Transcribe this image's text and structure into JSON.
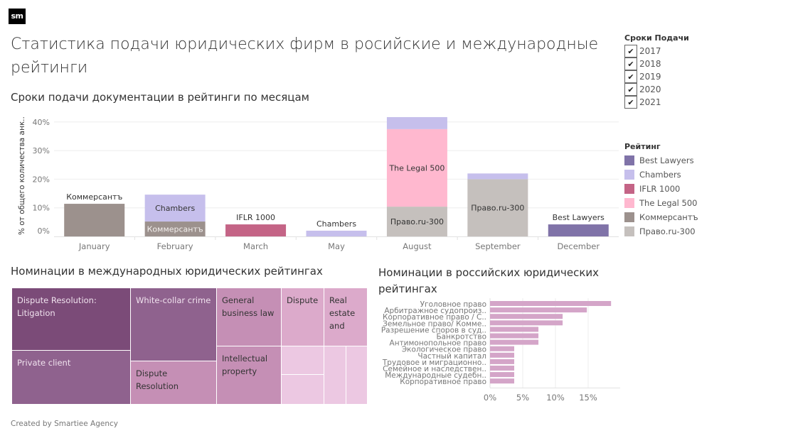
{
  "logo": "sm",
  "title": "Статистика подачи юридических фирм в росийские и международные рейтинги",
  "footer": "Created by Smartiee Agency",
  "filter": {
    "title": "Сроки Подачи",
    "items": [
      {
        "label": "2017",
        "checked": true
      },
      {
        "label": "2018",
        "checked": true
      },
      {
        "label": "2019",
        "checked": true
      },
      {
        "label": "2020",
        "checked": true
      },
      {
        "label": "2021",
        "checked": true
      }
    ],
    "check_glyph": "✔"
  },
  "legend": {
    "title": "Рейтинг",
    "items": [
      {
        "label": "Best Lawyers",
        "color": "#8073a8"
      },
      {
        "label": "Chambers",
        "color": "#c6bfec"
      },
      {
        "label": "IFLR 1000",
        "color": "#c46486"
      },
      {
        "label": "The Legal 500",
        "color": "#ffb8cf"
      },
      {
        "label": "Коммерсантъ",
        "color": "#9c918d"
      },
      {
        "label": "Право.ru-300",
        "color": "#c5c0bd"
      }
    ]
  },
  "chart_data": [
    {
      "type": "bar",
      "stacked": true,
      "title": "Сроки подачи документации в рейтинги по месяцам",
      "xlabel": "",
      "ylabel": "% от общего количества анк..",
      "ylim": [
        0,
        42
      ],
      "yticks": [
        0,
        10,
        20,
        30,
        40
      ],
      "ytick_labels": [
        "0%",
        "10%",
        "20%",
        "30%",
        "40%"
      ],
      "grid": true,
      "categories": [
        "January",
        "February",
        "March",
        "May",
        "August",
        "September",
        "December"
      ],
      "series": [
        {
          "name": "Право.ru-300",
          "color": "#c5c0bd",
          "values": [
            0,
            0,
            0,
            0,
            10.4,
            20.0,
            0
          ]
        },
        {
          "name": "Коммерсантъ",
          "color": "#9c918d",
          "values": [
            11.4,
            5.2,
            0,
            0,
            0,
            0,
            0
          ]
        },
        {
          "name": "IFLR 1000",
          "color": "#c46486",
          "values": [
            0,
            0,
            4.2,
            0,
            0,
            0,
            0
          ]
        },
        {
          "name": "Best Lawyers",
          "color": "#8073a8",
          "values": [
            0,
            0,
            0,
            0,
            0,
            0,
            4.2
          ]
        },
        {
          "name": "The Legal 500",
          "color": "#ffb8cf",
          "values": [
            0,
            0,
            0,
            0,
            27.1,
            0,
            0
          ]
        },
        {
          "name": "Chambers",
          "color": "#c6bfec",
          "values": [
            0,
            9.4,
            0,
            2.0,
            4.2,
            2.0,
            0
          ]
        }
      ],
      "annotations": [
        {
          "category": "January",
          "series": "Коммерсантъ",
          "text": "Коммерсантъ",
          "position": "above"
        },
        {
          "category": "February",
          "series": "Chambers",
          "text": "Chambers",
          "position": "inside"
        },
        {
          "category": "February",
          "series": "Коммерсантъ",
          "text": "Коммерсантъ",
          "position": "inside"
        },
        {
          "category": "March",
          "series": "IFLR 1000",
          "text": "IFLR 1000",
          "position": "above"
        },
        {
          "category": "May",
          "series": "Chambers",
          "text": "Chambers",
          "position": "above"
        },
        {
          "category": "August",
          "series": "The Legal 500",
          "text": "The Legal 500",
          "position": "inside"
        },
        {
          "category": "August",
          "series": "Право.ru-300",
          "text": "Право.ru-300",
          "position": "inside"
        },
        {
          "category": "September",
          "series": "Право.ru-300",
          "text": "Право.ru-300",
          "position": "inside"
        },
        {
          "category": "December",
          "series": "Best Lawyers",
          "text": "Best Lawyers",
          "position": "above"
        }
      ]
    },
    {
      "type": "treemap",
      "title": "Номинации в международных юридических рейтингах",
      "items": [
        {
          "label": "Dispute Resolution: Litigation",
          "value": 14,
          "color": "#7b4b78",
          "text_color": "#f0e2ee"
        },
        {
          "label": "Private client",
          "value": 12,
          "color": "#8f628e",
          "text_color": "#f0e2ee"
        },
        {
          "label": "White-collar crime",
          "value": 10,
          "color": "#8f628e",
          "text_color": "#f0e2ee"
        },
        {
          "label": "Dispute Resolution",
          "value": 6,
          "color": "#c58fb5",
          "text_color": "#333333"
        },
        {
          "label": "General business law",
          "value": 6,
          "color": "#c58fb5",
          "text_color": "#333333"
        },
        {
          "label": "Intellectual property",
          "value": 6,
          "color": "#c58fb5",
          "text_color": "#333333"
        },
        {
          "label": "Dispute",
          "value": 4,
          "color": "#dcaacb",
          "text_color": "#333333"
        },
        {
          "label": "Real estate and",
          "value": 4,
          "color": "#dcaacb",
          "text_color": "#333333"
        },
        {
          "label": "",
          "value": 2,
          "color": "#ecc8e2",
          "text_color": "#333333"
        },
        {
          "label": "",
          "value": 2,
          "color": "#ecc8e2",
          "text_color": "#333333"
        },
        {
          "label": "",
          "value": 2,
          "color": "#ecc8e2",
          "text_color": "#333333"
        },
        {
          "label": "",
          "value": 2,
          "color": "#ecc8e2",
          "text_color": "#333333"
        }
      ]
    },
    {
      "type": "bar",
      "orientation": "horizontal",
      "title": "Номинации в российских юридических рейтингах",
      "xlabel": "",
      "ylabel": "",
      "xlim": [
        0,
        19
      ],
      "xticks": [
        0,
        5,
        10,
        15
      ],
      "xtick_labels": [
        "0%",
        "5%",
        "10%",
        "15%"
      ],
      "grid": true,
      "color": "#d4a5c8",
      "categories": [
        "Уголовное право",
        "Арбитражное судопроиз..",
        "Корпоративное право / С..",
        "Земельное право/ Комме..",
        "Разрешение споров в суд..",
        "Банкротство",
        "Антимонопольное право",
        "Экологическое право",
        "Частный капитал",
        "Трудовое и миграционно..",
        "Семейное и наследствен..",
        "Международные судебн..",
        "Корпоративное право"
      ],
      "values": [
        18.5,
        14.8,
        11.1,
        11.1,
        7.4,
        7.4,
        7.4,
        3.7,
        3.7,
        3.7,
        3.7,
        3.7,
        3.7
      ]
    }
  ]
}
